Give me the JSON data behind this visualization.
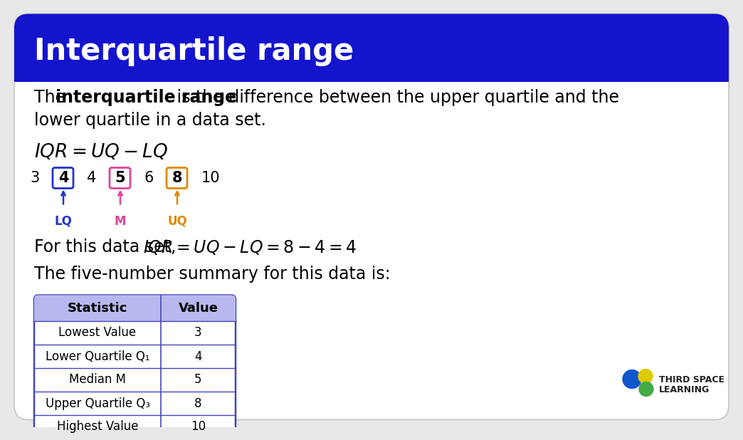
{
  "title": "Interquartile range",
  "title_bg_color": "#1414cc",
  "title_text_color": "#ffffff",
  "body_bg_color": "#ffffff",
  "bg_color": "#e8e8e8",
  "card_edge_color": "#cccccc",
  "formula": "IQR = UQ − LQ",
  "data_sequence": [
    3,
    4,
    4,
    5,
    6,
    8,
    10
  ],
  "boxed_numbers": [
    {
      "value": "4",
      "index": 1,
      "color": "#2233cc",
      "label": "LQ"
    },
    {
      "value": "5",
      "index": 3,
      "color": "#dd4499",
      "label": "M"
    },
    {
      "value": "8",
      "index": 5,
      "color": "#dd8800",
      "label": "UQ"
    }
  ],
  "result_formula": "IQR = UQ − LQ = 8 − 4 = 4",
  "summary_text": "The five-number summary for this data is:",
  "table_header_bg": "#b8b8ee",
  "table_border_color": "#4444bb",
  "table_headers": [
    "Statistic",
    "Value"
  ],
  "table_rows": [
    [
      "Lowest Value",
      "3"
    ],
    [
      "Lower Quartile Q₁",
      "4"
    ],
    [
      "Median M",
      "5"
    ],
    [
      "Upper Quartile Q₃",
      "8"
    ],
    [
      "Highest Value",
      "10"
    ]
  ],
  "logo_colors": [
    "#2255cc",
    "#ddcc00",
    "#44aa44"
  ],
  "logo_text_color": "#333333"
}
